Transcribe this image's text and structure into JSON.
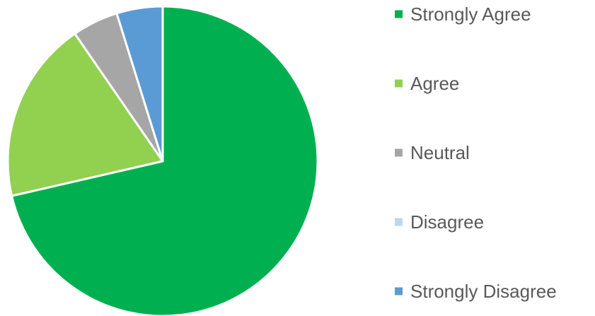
{
  "chart_data": {
    "type": "pie",
    "title": "",
    "categories": [
      "Strongly Agree",
      "Agree",
      "Neutral",
      "Disagree",
      "Strongly Disagree"
    ],
    "values": [
      71.4,
      19.0,
      4.8,
      0,
      4.8
    ],
    "colors": [
      "#00B050",
      "#92D050",
      "#A6A6A6",
      "#BDD7EE",
      "#5B9BD5"
    ],
    "start_angle_deg": 0,
    "direction": "clockwise",
    "legend_position": "right"
  }
}
